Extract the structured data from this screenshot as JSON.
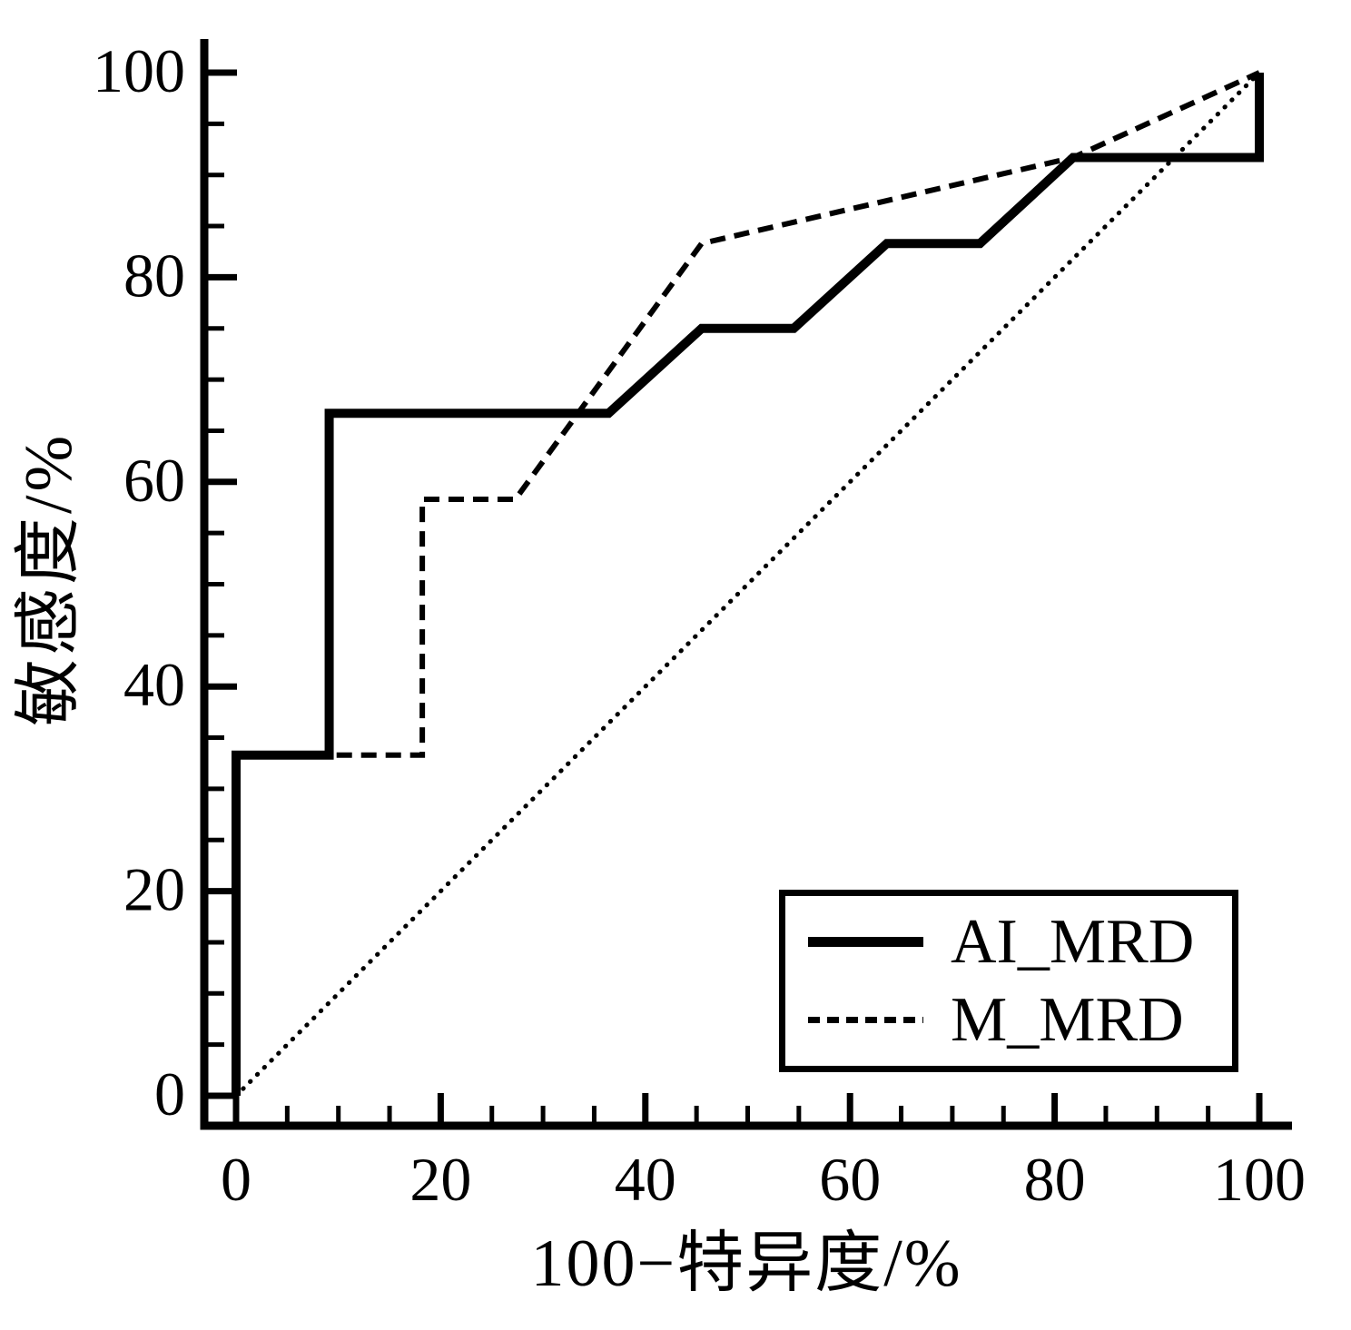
{
  "chart_data": {
    "type": "line",
    "title": "",
    "xlabel": "100−特异度/%",
    "ylabel": "敏感度/%",
    "xlim": [
      0,
      100
    ],
    "ylim": [
      0,
      100
    ],
    "x_major_ticks": [
      0,
      20,
      40,
      60,
      80,
      100
    ],
    "y_major_ticks": [
      0,
      20,
      40,
      60,
      80,
      100
    ],
    "minor_tick_step": 5,
    "grid": false,
    "legend_position": "lower-right",
    "colors": {
      "ink": "#000000",
      "background": "#ffffff"
    },
    "series": [
      {
        "name": "AI_MRD",
        "style": "solid",
        "width": 10,
        "show_in_legend": true,
        "points": [
          [
            0,
            0
          ],
          [
            0,
            33.3
          ],
          [
            9.1,
            33.3
          ],
          [
            9.1,
            66.7
          ],
          [
            36.4,
            66.7
          ],
          [
            45.5,
            75
          ],
          [
            54.5,
            75
          ],
          [
            63.6,
            83.3
          ],
          [
            72.7,
            83.3
          ],
          [
            81.8,
            91.7
          ],
          [
            100,
            91.7
          ],
          [
            100,
            100
          ]
        ]
      },
      {
        "name": "M_MRD",
        "style": "dashed",
        "width": 6,
        "show_in_legend": true,
        "points": [
          [
            0,
            0
          ],
          [
            0,
            33.3
          ],
          [
            18.2,
            33.3
          ],
          [
            18.2,
            58.3
          ],
          [
            27.3,
            58.3
          ],
          [
            45.5,
            83.3
          ],
          [
            81.8,
            91.7
          ],
          [
            100,
            100
          ]
        ]
      },
      {
        "name": "chance-reference",
        "style": "dotted",
        "width": 5,
        "show_in_legend": false,
        "points": [
          [
            0,
            0
          ],
          [
            100,
            100
          ]
        ]
      }
    ]
  },
  "legend": {
    "items": [
      {
        "label": "AI_MRD",
        "style": "solid"
      },
      {
        "label": "M_MRD",
        "style": "dashed"
      }
    ]
  }
}
